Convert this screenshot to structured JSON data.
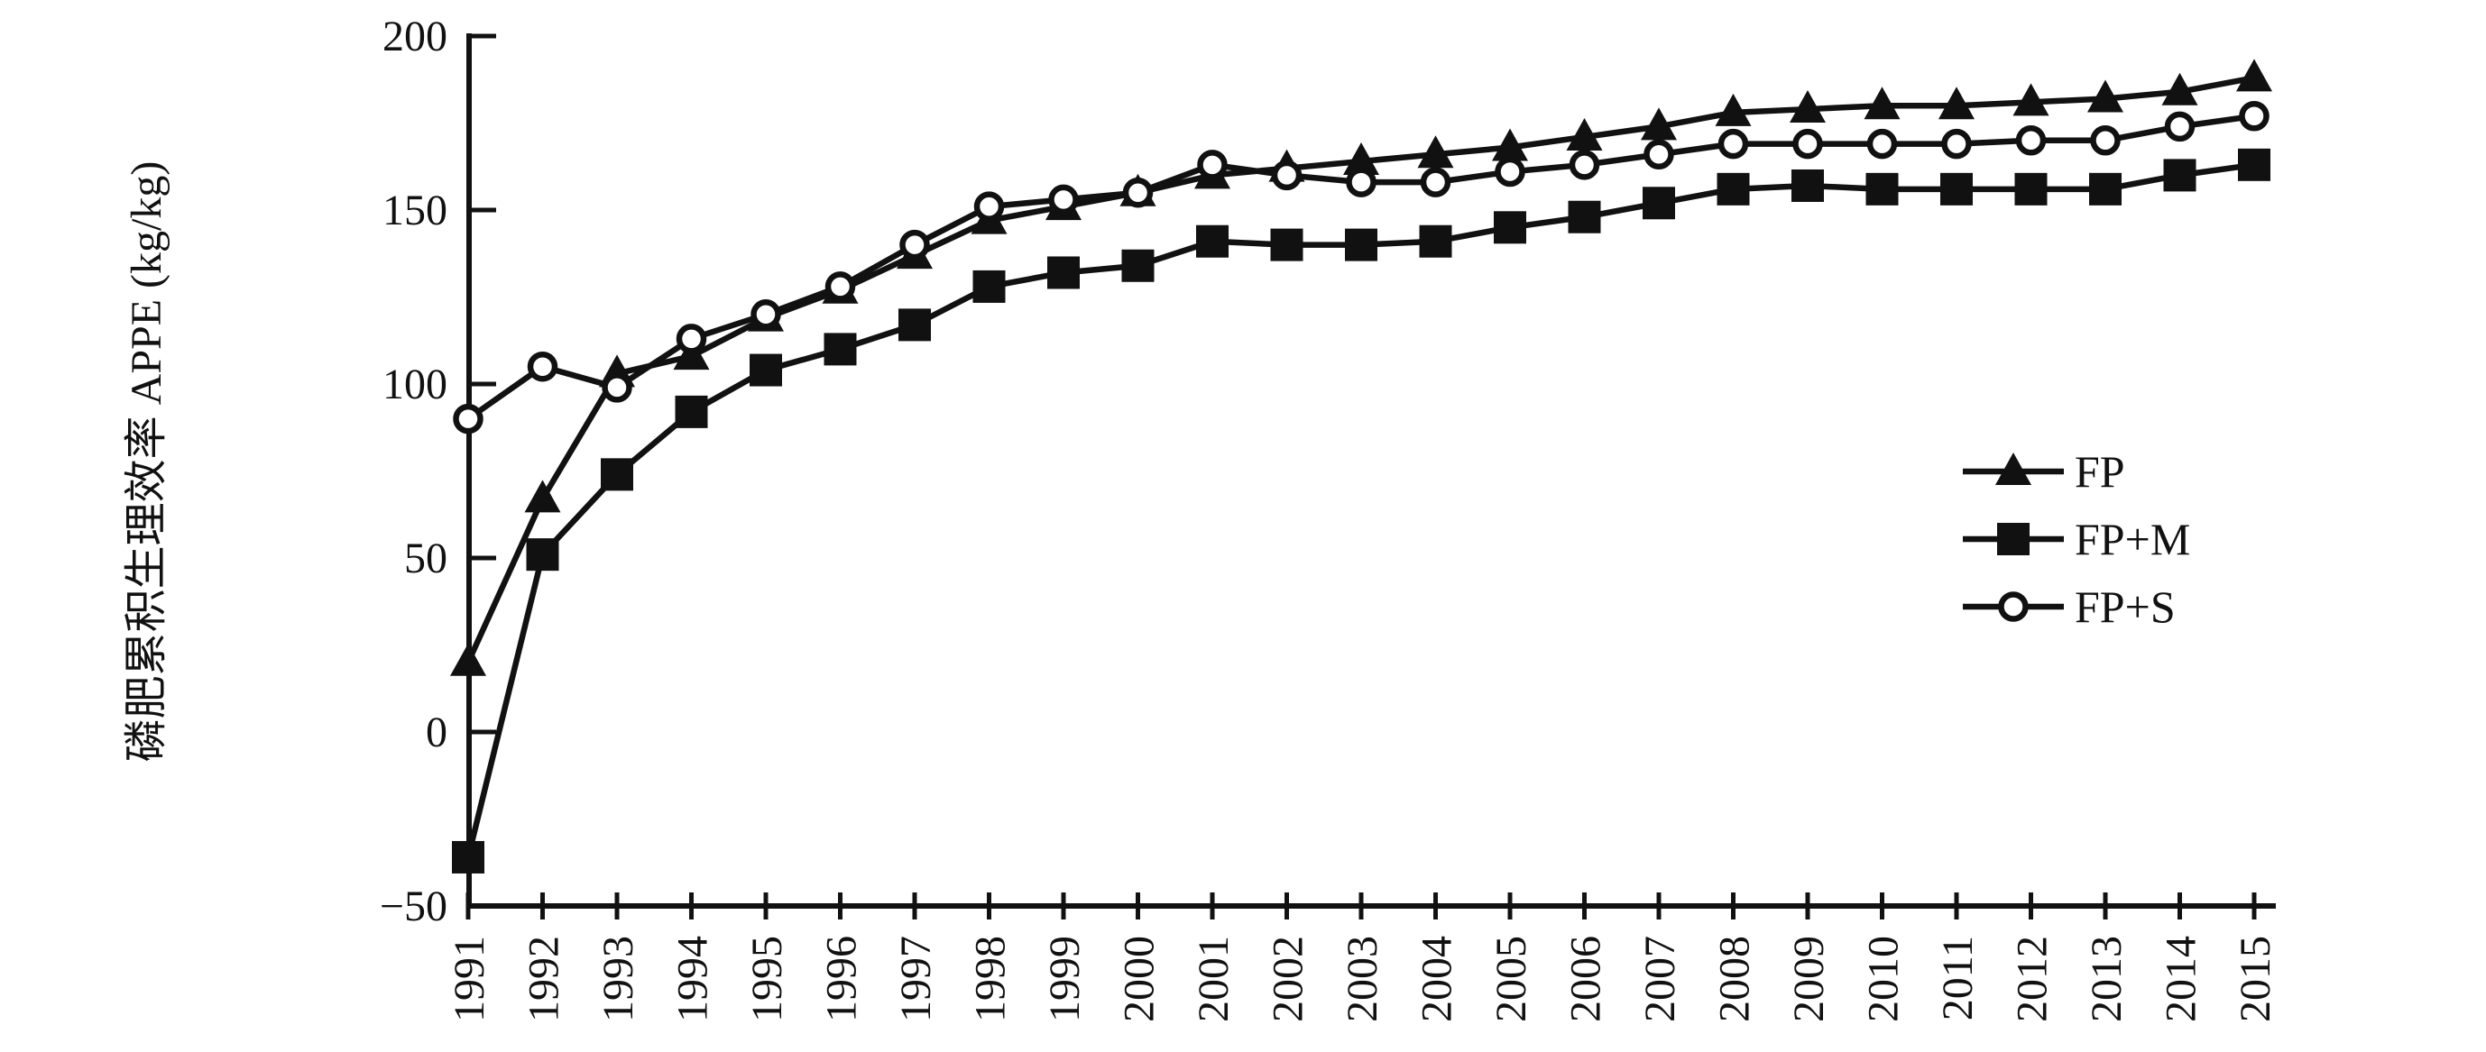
{
  "figure": {
    "background": "#ffffff",
    "ink_color": "#111111"
  },
  "y_axis": {
    "label": "磷肥累积生理效率 APPE (kg/kg)",
    "ticks": [
      200,
      150,
      100,
      50,
      0,
      -50
    ],
    "min": -50,
    "max": 200
  },
  "x_axis": {
    "tick_years": [
      1991,
      1992,
      1993,
      1994,
      1995,
      1996,
      1997,
      1998,
      1999,
      2000,
      2001,
      2002,
      2003,
      2004,
      2005,
      2006,
      2007,
      2008,
      2009,
      2010,
      2011,
      2012,
      2013,
      2014,
      2015
    ]
  },
  "legend": {
    "position": "right-middle",
    "items": [
      {
        "label": "FP",
        "marker": "triangle-filled"
      },
      {
        "label": "FP+M",
        "marker": "square-filled"
      },
      {
        "label": "FP+S",
        "marker": "circle-open"
      }
    ]
  },
  "chart_data": {
    "type": "line",
    "title": "",
    "xlabel": "",
    "ylabel": "磷肥累积生理效率 APPE (kg/kg)",
    "ylim": [
      -50,
      200
    ],
    "y_tick_step": 50,
    "grid": false,
    "legend_position": "right-middle",
    "x": [
      1991,
      1992,
      1993,
      1994,
      1995,
      1996,
      1997,
      1998,
      1999,
      2000,
      2001,
      2002,
      2003,
      2004,
      2005,
      2006,
      2007,
      2008,
      2009,
      2010,
      2011,
      2012,
      2013,
      2014,
      2015
    ],
    "series": [
      {
        "name": "FP",
        "marker": "triangle",
        "line_color": "#111111",
        "values": [
          20,
          67,
          103,
          108,
          119,
          127,
          137,
          147,
          151,
          155,
          160,
          162,
          164,
          166,
          168,
          171,
          174,
          178,
          179,
          180,
          180,
          181,
          182,
          184,
          188
        ]
      },
      {
        "name": "FP+M",
        "marker": "square",
        "line_color": "#111111",
        "values": [
          -36,
          51,
          74,
          92,
          104,
          110,
          117,
          128,
          132,
          134,
          141,
          140,
          140,
          141,
          145,
          148,
          152,
          156,
          157,
          156,
          156,
          156,
          156,
          160,
          163
        ]
      },
      {
        "name": "FP+S",
        "marker": "circle",
        "line_color": "#111111",
        "values": [
          90,
          105,
          99,
          113,
          120,
          128,
          140,
          151,
          153,
          155,
          163,
          160,
          158,
          158,
          161,
          163,
          166,
          169,
          169,
          169,
          169,
          170,
          170,
          174,
          177
        ]
      }
    ]
  }
}
